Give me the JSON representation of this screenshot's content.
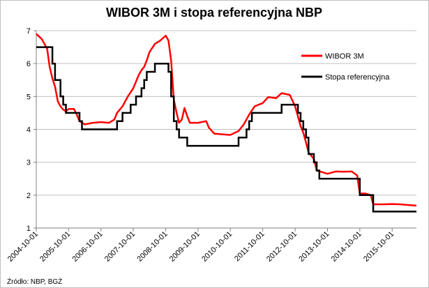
{
  "chart_data": {
    "type": "line",
    "title": "WIBOR 3M i stopa referencyjna NBP",
    "source": "Źródło: NBP, BGŻ",
    "ylim": [
      1,
      7
    ],
    "y_ticks": [
      "1",
      "2",
      "3",
      "4",
      "5",
      "6",
      "7"
    ],
    "x_range": [
      "2004-10-01",
      "2016-07-01"
    ],
    "x_ticks": [
      "2004-10-01",
      "2005-10-01",
      "2006-10-01",
      "2007-10-01",
      "2008-10-01",
      "2009-10-01",
      "2010-10-01",
      "2011-10-01",
      "2012-10-01",
      "2013-10-01",
      "2014-10-01",
      "2015-10-01"
    ],
    "grid": "horizontal",
    "legend_position": "right",
    "series": [
      {
        "name": "WIBOR 3M",
        "color": "#ff0000",
        "style": "line",
        "points": [
          [
            "2004-10-01",
            6.9
          ],
          [
            "2004-12-01",
            6.75
          ],
          [
            "2005-02-01",
            6.45
          ],
          [
            "2005-03-01",
            5.9
          ],
          [
            "2005-04-01",
            5.55
          ],
          [
            "2005-05-01",
            5.3
          ],
          [
            "2005-06-01",
            4.85
          ],
          [
            "2005-07-01",
            4.7
          ],
          [
            "2005-08-01",
            4.6
          ],
          [
            "2005-09-01",
            4.55
          ],
          [
            "2005-10-01",
            4.62
          ],
          [
            "2005-12-01",
            4.62
          ],
          [
            "2006-01-01",
            4.45
          ],
          [
            "2006-02-01",
            4.25
          ],
          [
            "2006-04-01",
            4.15
          ],
          [
            "2006-07-01",
            4.2
          ],
          [
            "2006-10-01",
            4.22
          ],
          [
            "2007-01-01",
            4.2
          ],
          [
            "2007-03-01",
            4.3
          ],
          [
            "2007-04-01",
            4.5
          ],
          [
            "2007-06-01",
            4.7
          ],
          [
            "2007-08-01",
            5.0
          ],
          [
            "2007-10-01",
            5.25
          ],
          [
            "2007-12-01",
            5.65
          ],
          [
            "2008-01-01",
            5.8
          ],
          [
            "2008-02-01",
            5.9
          ],
          [
            "2008-03-01",
            6.1
          ],
          [
            "2008-04-01",
            6.35
          ],
          [
            "2008-06-01",
            6.6
          ],
          [
            "2008-08-01",
            6.7
          ],
          [
            "2008-10-01",
            6.85
          ],
          [
            "2008-11-01",
            6.7
          ],
          [
            "2008-12-01",
            6.1
          ],
          [
            "2009-01-01",
            4.9
          ],
          [
            "2009-02-01",
            4.5
          ],
          [
            "2009-03-01",
            4.2
          ],
          [
            "2009-04-01",
            4.3
          ],
          [
            "2009-05-01",
            4.65
          ],
          [
            "2009-06-01",
            4.4
          ],
          [
            "2009-07-01",
            4.2
          ],
          [
            "2009-10-01",
            4.2
          ],
          [
            "2010-01-01",
            4.25
          ],
          [
            "2010-02-01",
            4.05
          ],
          [
            "2010-04-01",
            3.87
          ],
          [
            "2010-07-01",
            3.85
          ],
          [
            "2010-10-01",
            3.83
          ],
          [
            "2011-01-01",
            3.95
          ],
          [
            "2011-03-01",
            4.15
          ],
          [
            "2011-05-01",
            4.45
          ],
          [
            "2011-07-01",
            4.7
          ],
          [
            "2011-10-01",
            4.8
          ],
          [
            "2011-12-01",
            4.98
          ],
          [
            "2012-03-01",
            4.95
          ],
          [
            "2012-05-01",
            5.1
          ],
          [
            "2012-08-01",
            5.05
          ],
          [
            "2012-10-01",
            4.7
          ],
          [
            "2012-11-01",
            4.4
          ],
          [
            "2012-12-01",
            4.1
          ],
          [
            "2013-01-01",
            3.9
          ],
          [
            "2013-02-01",
            3.6
          ],
          [
            "2013-03-01",
            3.3
          ],
          [
            "2013-05-01",
            3.1
          ],
          [
            "2013-06-01",
            2.75
          ],
          [
            "2013-08-01",
            2.7
          ],
          [
            "2013-10-01",
            2.65
          ],
          [
            "2014-01-01",
            2.72
          ],
          [
            "2014-04-01",
            2.71
          ],
          [
            "2014-07-01",
            2.72
          ],
          [
            "2014-09-01",
            2.6
          ],
          [
            "2014-10-01",
            2.05
          ],
          [
            "2014-12-01",
            2.05
          ],
          [
            "2015-02-01",
            2.0
          ],
          [
            "2015-03-01",
            1.72
          ],
          [
            "2015-07-01",
            1.72
          ],
          [
            "2015-10-01",
            1.73
          ],
          [
            "2016-01-01",
            1.72
          ],
          [
            "2016-04-01",
            1.7
          ],
          [
            "2016-07-01",
            1.68
          ]
        ]
      },
      {
        "name": "Stopa referencyjna",
        "color": "#000000",
        "style": "step",
        "points": [
          [
            "2004-10-01",
            6.5
          ],
          [
            "2005-04-01",
            6.0
          ],
          [
            "2005-05-01",
            5.5
          ],
          [
            "2005-07-01",
            5.0
          ],
          [
            "2005-08-01",
            4.75
          ],
          [
            "2005-09-01",
            4.5
          ],
          [
            "2006-02-01",
            4.25
          ],
          [
            "2006-03-01",
            4.0
          ],
          [
            "2007-04-01",
            4.25
          ],
          [
            "2007-06-01",
            4.5
          ],
          [
            "2007-09-01",
            4.75
          ],
          [
            "2007-11-01",
            5.0
          ],
          [
            "2008-01-01",
            5.25
          ],
          [
            "2008-02-01",
            5.5
          ],
          [
            "2008-03-01",
            5.75
          ],
          [
            "2008-06-01",
            6.0
          ],
          [
            "2008-11-01",
            5.75
          ],
          [
            "2008-12-01",
            5.0
          ],
          [
            "2009-01-01",
            4.25
          ],
          [
            "2009-02-01",
            4.0
          ],
          [
            "2009-03-01",
            3.75
          ],
          [
            "2009-06-01",
            3.5
          ],
          [
            "2011-01-01",
            3.75
          ],
          [
            "2011-04-01",
            4.0
          ],
          [
            "2011-05-01",
            4.25
          ],
          [
            "2011-06-01",
            4.5
          ],
          [
            "2012-05-01",
            4.75
          ],
          [
            "2012-11-01",
            4.5
          ],
          [
            "2012-12-01",
            4.25
          ],
          [
            "2013-01-01",
            4.0
          ],
          [
            "2013-02-01",
            3.75
          ],
          [
            "2013-03-01",
            3.25
          ],
          [
            "2013-05-01",
            3.0
          ],
          [
            "2013-06-01",
            2.75
          ],
          [
            "2013-07-01",
            2.5
          ],
          [
            "2014-10-01",
            2.0
          ],
          [
            "2015-03-01",
            1.5
          ],
          [
            "2016-07-01",
            1.5
          ]
        ]
      }
    ]
  }
}
